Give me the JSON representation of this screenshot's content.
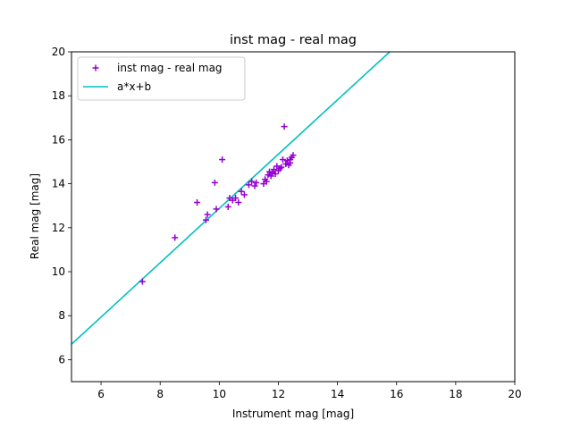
{
  "chart_data": {
    "type": "scatter",
    "title": "inst mag - real mag",
    "xlabel": "Instrument mag [mag]",
    "ylabel": "Real mag [mag]",
    "xlim": [
      5,
      20
    ],
    "ylim": [
      5,
      20
    ],
    "xticks": [
      "6",
      "8",
      "10",
      "12",
      "14",
      "16",
      "18",
      "20"
    ],
    "yticks": [
      "6",
      "8",
      "10",
      "12",
      "14",
      "16",
      "18",
      "20"
    ],
    "grid": false,
    "legend_position": "top-left",
    "series": [
      {
        "name": "inst mag - real mag",
        "kind": "scatter",
        "marker": "+",
        "color": "#9400d3",
        "points": [
          [
            7.4,
            9.55
          ],
          [
            8.5,
            11.55
          ],
          [
            9.25,
            13.15
          ],
          [
            9.55,
            12.35
          ],
          [
            9.6,
            12.6
          ],
          [
            9.85,
            14.05
          ],
          [
            9.9,
            12.85
          ],
          [
            10.1,
            15.1
          ],
          [
            10.3,
            12.95
          ],
          [
            10.35,
            13.35
          ],
          [
            10.45,
            13.25
          ],
          [
            10.55,
            13.35
          ],
          [
            10.65,
            13.15
          ],
          [
            10.75,
            13.65
          ],
          [
            10.85,
            13.5
          ],
          [
            11.0,
            13.95
          ],
          [
            11.1,
            14.1
          ],
          [
            11.2,
            13.9
          ],
          [
            11.25,
            14.05
          ],
          [
            11.5,
            14.0
          ],
          [
            11.55,
            14.2
          ],
          [
            11.6,
            14.1
          ],
          [
            11.65,
            14.4
          ],
          [
            11.7,
            14.55
          ],
          [
            11.75,
            14.35
          ],
          [
            11.8,
            14.5
          ],
          [
            11.85,
            14.65
          ],
          [
            11.9,
            14.45
          ],
          [
            11.95,
            14.8
          ],
          [
            12.0,
            14.6
          ],
          [
            12.05,
            14.7
          ],
          [
            12.1,
            14.75
          ],
          [
            12.15,
            15.1
          ],
          [
            12.2,
            16.6
          ],
          [
            12.25,
            14.9
          ],
          [
            12.3,
            15.05
          ],
          [
            12.35,
            14.85
          ],
          [
            12.4,
            15.1
          ],
          [
            12.4,
            14.95
          ],
          [
            12.45,
            15.2
          ],
          [
            12.5,
            15.3
          ]
        ]
      },
      {
        "name": "a*x+b",
        "kind": "line",
        "color": "#00bfbf",
        "slope": 1.235,
        "intercept": 0.527
      }
    ]
  }
}
